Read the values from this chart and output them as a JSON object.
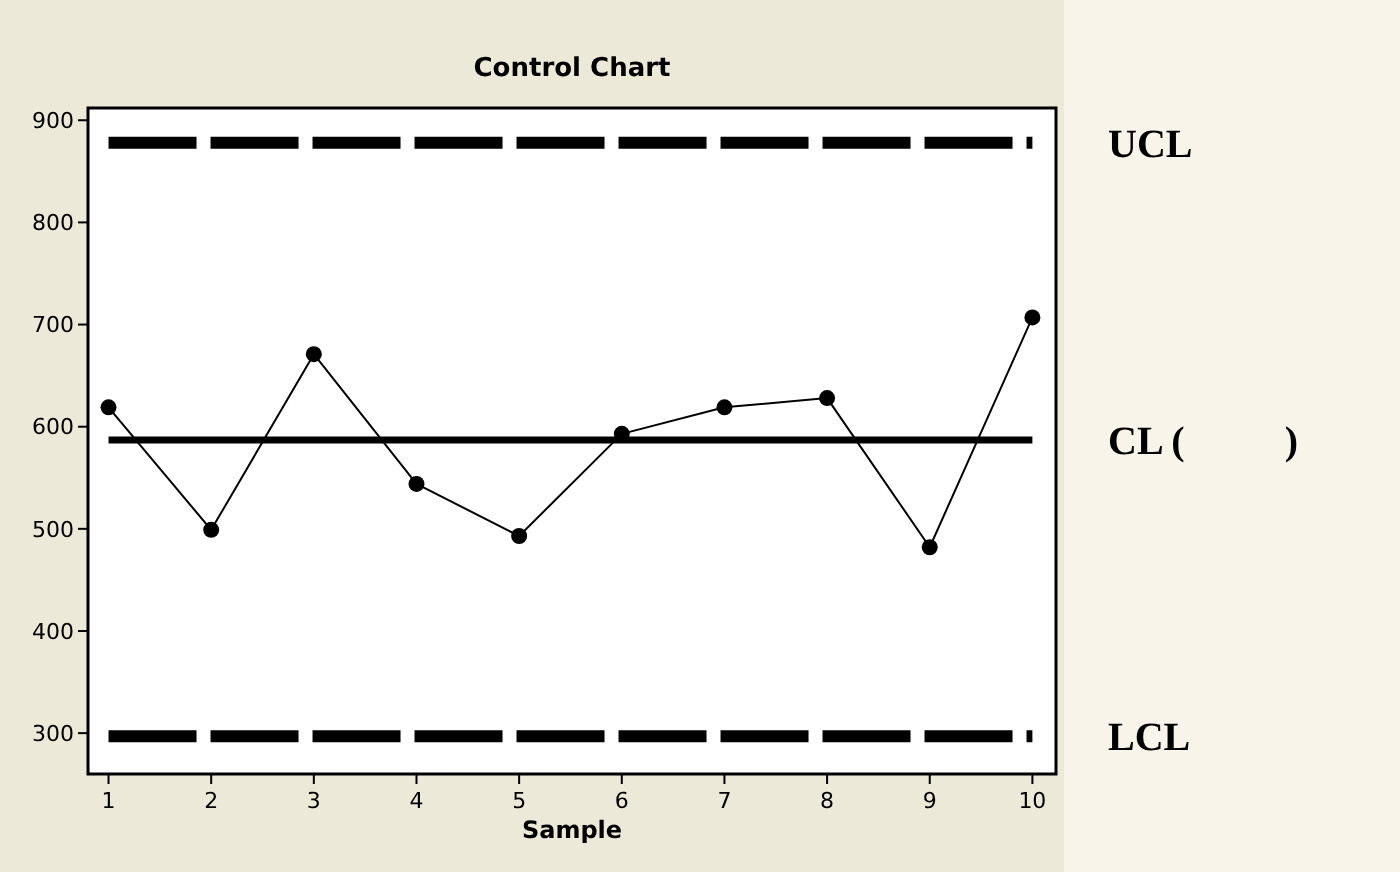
{
  "chart_data": {
    "type": "line",
    "title": "Control Chart",
    "xlabel": "Sample",
    "x": [
      1,
      2,
      3,
      4,
      5,
      6,
      7,
      8,
      9,
      10
    ],
    "series": [
      {
        "color": "#000000",
        "values": [
          619,
          499,
          671,
          544,
          493,
          593,
          619,
          628,
          482,
          707
        ]
      }
    ],
    "xlim": [
      0.8,
      10.23
    ],
    "xticks": [
      1,
      2,
      3,
      4,
      5,
      6,
      7,
      8,
      9,
      10
    ],
    "ylim": [
      260,
      912
    ],
    "yticks": [
      300,
      400,
      500,
      600,
      700,
      800,
      900
    ],
    "marker": "circle",
    "line_style": "solid",
    "grid": false,
    "ref_lines": [
      {
        "axis": "y",
        "value": 878,
        "label": "UCL",
        "color": "#000000",
        "line_style": "dashed"
      },
      {
        "axis": "y",
        "value": 587,
        "label": "CL (          )",
        "color": "#000000",
        "line_style": "solid"
      },
      {
        "axis": "y",
        "value": 297,
        "label": "LCL",
        "color": "#000000",
        "line_style": "dashed"
      }
    ]
  }
}
